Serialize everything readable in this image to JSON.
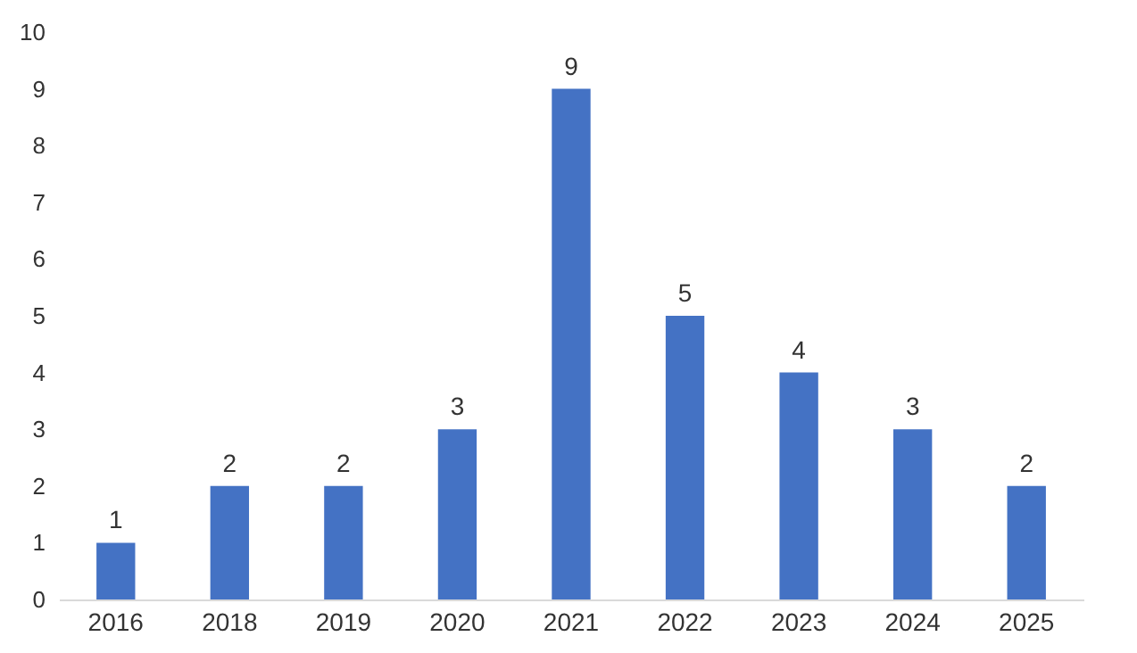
{
  "chart_data": {
    "type": "bar",
    "categories": [
      "2016",
      "2018",
      "2019",
      "2020",
      "2021",
      "2022",
      "2023",
      "2024",
      "2025"
    ],
    "values": [
      1,
      2,
      2,
      3,
      9,
      5,
      4,
      3,
      2
    ],
    "color": "#4472c4",
    "ylim": [
      0,
      10
    ],
    "yticks": [
      0,
      1,
      2,
      3,
      4,
      5,
      6,
      7,
      8,
      9,
      10
    ],
    "grid": false,
    "data_labels": true
  }
}
